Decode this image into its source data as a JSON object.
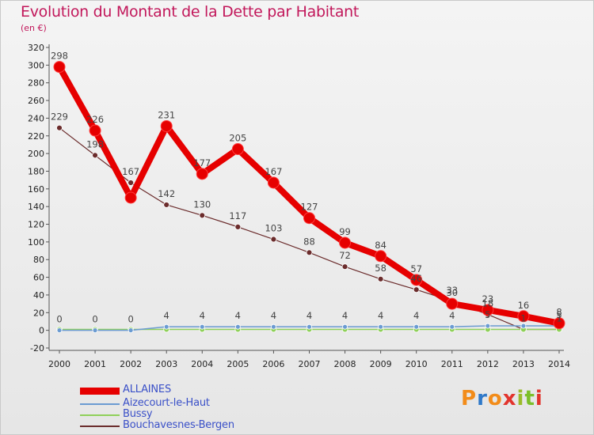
{
  "chart_data": {
    "type": "line",
    "title": "Evolution du Montant de la Dette par Habitant",
    "subtitle": "(en €)",
    "x": [
      "2000",
      "2001",
      "2002",
      "2003",
      "2004",
      "2005",
      "2006",
      "2007",
      "2008",
      "2009",
      "2010",
      "2011",
      "2012",
      "2013",
      "2014"
    ],
    "ylim": [
      -20,
      320
    ],
    "yticks": [
      -20,
      0,
      20,
      40,
      60,
      80,
      100,
      120,
      140,
      160,
      180,
      200,
      220,
      240,
      260,
      280,
      300,
      320
    ],
    "grid": false,
    "series": [
      {
        "name": "ALLAINES",
        "color": "#e60000",
        "width": 8,
        "marker": 7,
        "values": [
          298,
          226,
          150,
          231,
          177,
          205,
          167,
          127,
          99,
          84,
          57,
          30,
          23,
          16,
          8
        ],
        "labels": [
          "298",
          "226",
          "",
          "231",
          "177",
          "205",
          "167",
          "127",
          "99",
          "84",
          "57",
          "30",
          "23",
          "16",
          "8"
        ]
      },
      {
        "name": "Aizecourt-le-Haut",
        "color": "#6b9bd1",
        "width": 1.5,
        "marker": 3,
        "values": [
          0,
          0,
          0,
          4,
          4,
          4,
          4,
          4,
          4,
          4,
          4,
          4,
          5,
          5,
          5
        ],
        "labels": [
          "0",
          "0",
          "0",
          "4",
          "4",
          "4",
          "4",
          "4",
          "4",
          "4",
          "4",
          "4",
          "5",
          "",
          "5"
        ]
      },
      {
        "name": "Bussy",
        "color": "#8fd05a",
        "width": 1.5,
        "marker": 3.5,
        "values": [
          1,
          1,
          1,
          1,
          1,
          1,
          1,
          1,
          1,
          1,
          1,
          1,
          1,
          1,
          1
        ],
        "labels": [
          "",
          "",
          "",
          "",
          "",
          "",
          "",
          "",
          "",
          "",
          "",
          "",
          "",
          "",
          ""
        ]
      },
      {
        "name": "Bouchavesnes-Bergen",
        "color": "#6b2c2c",
        "width": 1.2,
        "marker": 3.5,
        "values": [
          229,
          198,
          167,
          142,
          130,
          117,
          103,
          88,
          72,
          58,
          46,
          33,
          18,
          1,
          1
        ],
        "labels": [
          "229",
          "198",
          "167",
          "142",
          "130",
          "117",
          "103",
          "88",
          "72",
          "58",
          "46",
          "33",
          "18",
          "1",
          "1"
        ]
      }
    ]
  },
  "legend": {
    "items": [
      "ALLAINES",
      "Aizecourt-le-Haut",
      "Bussy",
      "Bouchavesnes-Bergen"
    ]
  },
  "brand": {
    "text": "Proxiti",
    "colors": [
      "#f28c1a",
      "#2f79c9",
      "#f28c1a",
      "#e2342d",
      "#9bbb2a",
      "#7cbf2a",
      "#e2342d"
    ]
  }
}
